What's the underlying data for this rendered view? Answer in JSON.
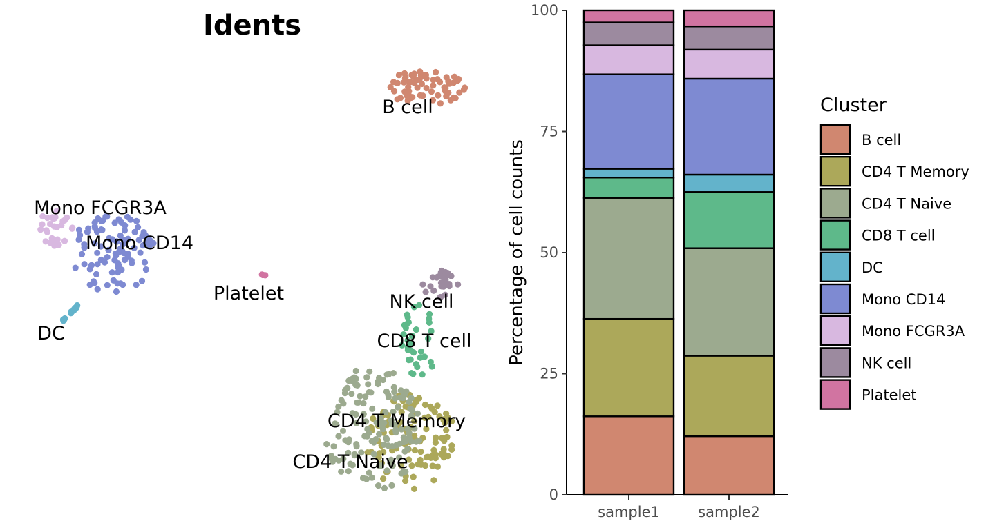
{
  "umap": {
    "title": "Idents",
    "clusters": [
      {
        "name": "B cell",
        "color": "#D08770",
        "n": 70,
        "xlim": [
          555,
          675
        ],
        "ylim": [
          102,
          152
        ],
        "label": "B cell"
      },
      {
        "name": "Mono FCGR3A",
        "color": "#D8B8E0",
        "n": 28,
        "xlim": [
          52,
          105
        ],
        "ylim": [
          305,
          360
        ],
        "label": "Mono FCGR3A"
      },
      {
        "name": "Mono CD14",
        "color": "#7E8AD2",
        "n": 95,
        "xlim": [
          100,
          225
        ],
        "ylim": [
          310,
          425
        ],
        "label": "Mono CD14"
      },
      {
        "name": "DC",
        "color": "#63B3CB",
        "n": 14,
        "xlim": [
          90,
          117
        ],
        "ylim": [
          438,
          466
        ],
        "label": "DC"
      },
      {
        "name": "Platelet",
        "color": "#D174A1",
        "n": 3,
        "xlim": [
          377,
          388
        ],
        "ylim": [
          395,
          402
        ],
        "label": "Platelet"
      },
      {
        "name": "NK cell",
        "color": "#9C8A9F",
        "n": 28,
        "xlim": [
          610,
          665
        ],
        "ylim": [
          392,
          432
        ],
        "label": "NK cell"
      },
      {
        "name": "CD8 T cell",
        "color": "#5EB98A",
        "n": 35,
        "xlim": [
          580,
          632
        ],
        "ylim": [
          435,
          560
        ],
        "label": "CD8 T cell"
      },
      {
        "name": "CD4 T Memory",
        "color": "#ACA85A",
        "n": 110,
        "xlim": [
          530,
          660
        ],
        "ylim": [
          570,
          710
        ],
        "label": "CD4 T Memory"
      },
      {
        "name": "CD4 T Naive",
        "color": "#9CAA8F",
        "n": 150,
        "xlim": [
          470,
          610
        ],
        "ylim": [
          530,
          712
        ],
        "label": "CD4 T Naive"
      }
    ]
  },
  "chart_data": {
    "type": "bar",
    "stacked": true,
    "categories": [
      "sample1",
      "sample2"
    ],
    "ylabel": "Percentage of cell counts",
    "xlabel": "",
    "ylim": [
      0,
      100
    ],
    "yticks": [
      0,
      25,
      50,
      75,
      100
    ],
    "legend_title": "Cluster",
    "legend_position": "right",
    "series": [
      {
        "name": "B cell",
        "color": "#D08770",
        "values": [
          16.2,
          12.1
        ]
      },
      {
        "name": "CD4 T Memory",
        "color": "#ACA85A",
        "values": [
          20.1,
          16.6
        ]
      },
      {
        "name": "CD4 T Naive",
        "color": "#9CAA8F",
        "values": [
          25.0,
          22.2
        ]
      },
      {
        "name": "CD8 T cell",
        "color": "#5EB98A",
        "values": [
          4.2,
          11.6
        ]
      },
      {
        "name": "DC",
        "color": "#63B3CB",
        "values": [
          1.8,
          3.6
        ]
      },
      {
        "name": "Mono CD14",
        "color": "#7E8AD2",
        "values": [
          19.5,
          19.8
        ]
      },
      {
        "name": "Mono FCGR3A",
        "color": "#D8B8E0",
        "values": [
          6.0,
          6.0
        ]
      },
      {
        "name": "NK cell",
        "color": "#9C8A9F",
        "values": [
          4.7,
          4.8
        ]
      },
      {
        "name": "Platelet",
        "color": "#D174A1",
        "values": [
          2.5,
          3.3
        ]
      }
    ]
  }
}
